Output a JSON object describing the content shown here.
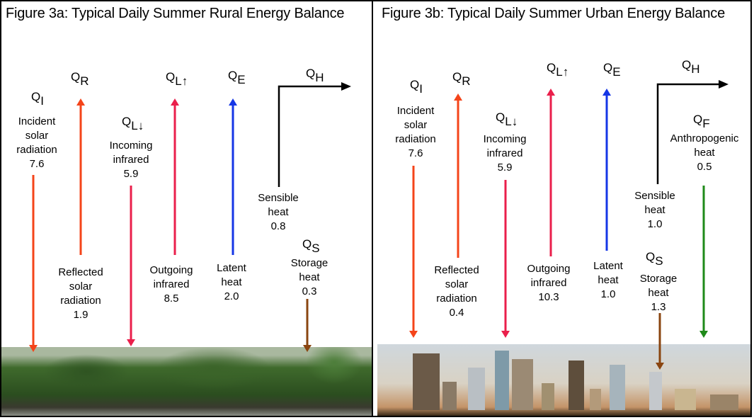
{
  "rural": {
    "title": "Figure 3a: Typical Daily Summer Rural Energy Balance",
    "qi": {
      "q": "Q",
      "sub": "I",
      "l1": "Incident",
      "l2": "solar",
      "l3": "radiation",
      "value": "7.6"
    },
    "qr": {
      "q": "Q",
      "sub": "R",
      "l1": "Reflected",
      "l2": "solar",
      "l3": "radiation",
      "value": "1.9"
    },
    "qld": {
      "q": "Q",
      "sub": "L↓",
      "l1": "Incoming",
      "l2": "infrared",
      "value": "5.9"
    },
    "qlu": {
      "q": "Q",
      "sub": "L↑",
      "l1": "Outgoing",
      "l2": "infrared",
      "value": "8.5"
    },
    "qe": {
      "q": "Q",
      "sub": "E",
      "l1": "Latent",
      "l2": "heat",
      "value": "2.0"
    },
    "qh": {
      "q": "Q",
      "sub": "H",
      "l1": "Sensible",
      "l2": "heat",
      "value": "0.8"
    },
    "qs": {
      "q": "Q",
      "sub": "S",
      "l1": "Storage",
      "l2": "heat",
      "value": "0.3"
    }
  },
  "urban": {
    "title": "Figure 3b: Typical Daily Summer Urban Energy Balance",
    "qi": {
      "q": "Q",
      "sub": "I",
      "l1": "Incident",
      "l2": "solar",
      "l3": "radiation",
      "value": "7.6"
    },
    "qr": {
      "q": "Q",
      "sub": "R",
      "l1": "Reflected",
      "l2": "solar",
      "l3": "radiation",
      "value": "0.4"
    },
    "qld": {
      "q": "Q",
      "sub": "L↓",
      "l1": "Incoming",
      "l2": "infrared",
      "value": "5.9"
    },
    "qlu": {
      "q": "Q",
      "sub": "L↑",
      "l1": "Outgoing",
      "l2": "infrared",
      "value": "10.3"
    },
    "qe": {
      "q": "Q",
      "sub": "E",
      "l1": "Latent",
      "l2": "heat",
      "value": "1.0"
    },
    "qh": {
      "q": "Q",
      "sub": "H",
      "l1": "Sensible",
      "l2": "heat",
      "value": "1.0"
    },
    "qf": {
      "q": "Q",
      "sub": "F",
      "l1": "Anthropogenic",
      "l2": "heat",
      "value": "0.5"
    },
    "qs": {
      "q": "Q",
      "sub": "S",
      "l1": "Storage",
      "l2": "heat",
      "value": "1.3"
    }
  },
  "colors": {
    "solar": "#f4441a",
    "infrared": "#ea1f4b",
    "latent": "#1536e6",
    "sensible": "#000000",
    "storage": "#8a4510",
    "anthropogenic": "#1f8a1a"
  }
}
